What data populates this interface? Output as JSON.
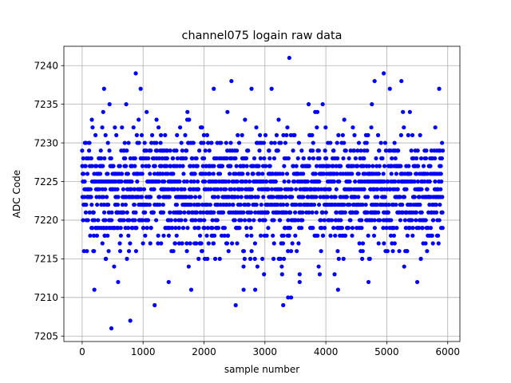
{
  "chart_data": {
    "type": "scatter",
    "title": "channel075 logain raw data",
    "xlabel": "sample number",
    "ylabel": "ADC Code",
    "xlim": [
      -300,
      6200
    ],
    "ylim": [
      7204.3,
      7242.5
    ],
    "x_ticks": [
      0,
      1000,
      2000,
      3000,
      4000,
      5000,
      6000
    ],
    "y_ticks": [
      7205,
      7210,
      7215,
      7220,
      7225,
      7230,
      7235,
      7240
    ],
    "grid": true,
    "legend": "none",
    "marker_color": "#0000ff",
    "n_samples": 5920,
    "dense_band": [
      7215,
      7231
    ],
    "outliers": [
      {
        "x": 360,
        "y": 7237
      },
      {
        "x": 480,
        "y": 7206
      },
      {
        "x": 790,
        "y": 7207
      },
      {
        "x": 880,
        "y": 7239
      },
      {
        "x": 960,
        "y": 7237
      },
      {
        "x": 1190,
        "y": 7209
      },
      {
        "x": 2160,
        "y": 7237
      },
      {
        "x": 2450,
        "y": 7238
      },
      {
        "x": 2520,
        "y": 7209
      },
      {
        "x": 2780,
        "y": 7237
      },
      {
        "x": 3110,
        "y": 7237
      },
      {
        "x": 3300,
        "y": 7209
      },
      {
        "x": 3400,
        "y": 7241
      },
      {
        "x": 3380,
        "y": 7210
      },
      {
        "x": 3430,
        "y": 7210
      },
      {
        "x": 4200,
        "y": 7211
      },
      {
        "x": 4800,
        "y": 7238
      },
      {
        "x": 4950,
        "y": 7239
      },
      {
        "x": 5050,
        "y": 7237
      },
      {
        "x": 5240,
        "y": 7238
      },
      {
        "x": 5860,
        "y": 7237
      },
      {
        "x": 200,
        "y": 7211
      },
      {
        "x": 1790,
        "y": 7211
      },
      {
        "x": 2650,
        "y": 7211
      },
      {
        "x": 2840,
        "y": 7211
      },
      {
        "x": 3570,
        "y": 7212
      },
      {
        "x": 4700,
        "y": 7212
      },
      {
        "x": 5500,
        "y": 7212
      },
      {
        "x": 1420,
        "y": 7212
      },
      {
        "x": 590,
        "y": 7212
      }
    ]
  }
}
